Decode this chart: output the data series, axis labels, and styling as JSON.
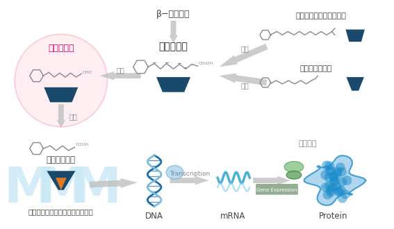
{
  "bg_color": "#ffffff",
  "dark_blue": "#1a4a6b",
  "light_blue": "#add8e6",
  "arrow_gray": "#b0b0b0",
  "text_dark": "#555555",
  "pink_circle_color": "#ffe0e8",
  "pink_circle_border": "#ffaabb",
  "retinal_label_color": "#cc0066",
  "dna_blue": "#1a6fa8",
  "mrna_blue": "#4ab0d8",
  "protein_blue": "#1a8ccc",
  "orange_accent": "#e07820",
  "gene_exp_color": "#7a9a7a",
  "transcription_label": "Transcription",
  "gene_expression_label": "Gene Expression",
  "labels": {
    "beta_carotene": "β−カロテン",
    "retinol": "レチノール",
    "retinal": "レチナール",
    "retinoic_acid": "レチノイン酸",
    "palmitate": "パルミチン酸レチノール",
    "acetate": "酢酸レチノール",
    "receptor": "レチノイド受容体（レセプター）",
    "metabolism1": "代謝",
    "metabolism2": "代謝",
    "decompose1": "分解",
    "decompose2": "分解",
    "effect": "効果発現",
    "DNA": "DNA",
    "mRNA": "mRNA",
    "Protein": "Protein"
  }
}
